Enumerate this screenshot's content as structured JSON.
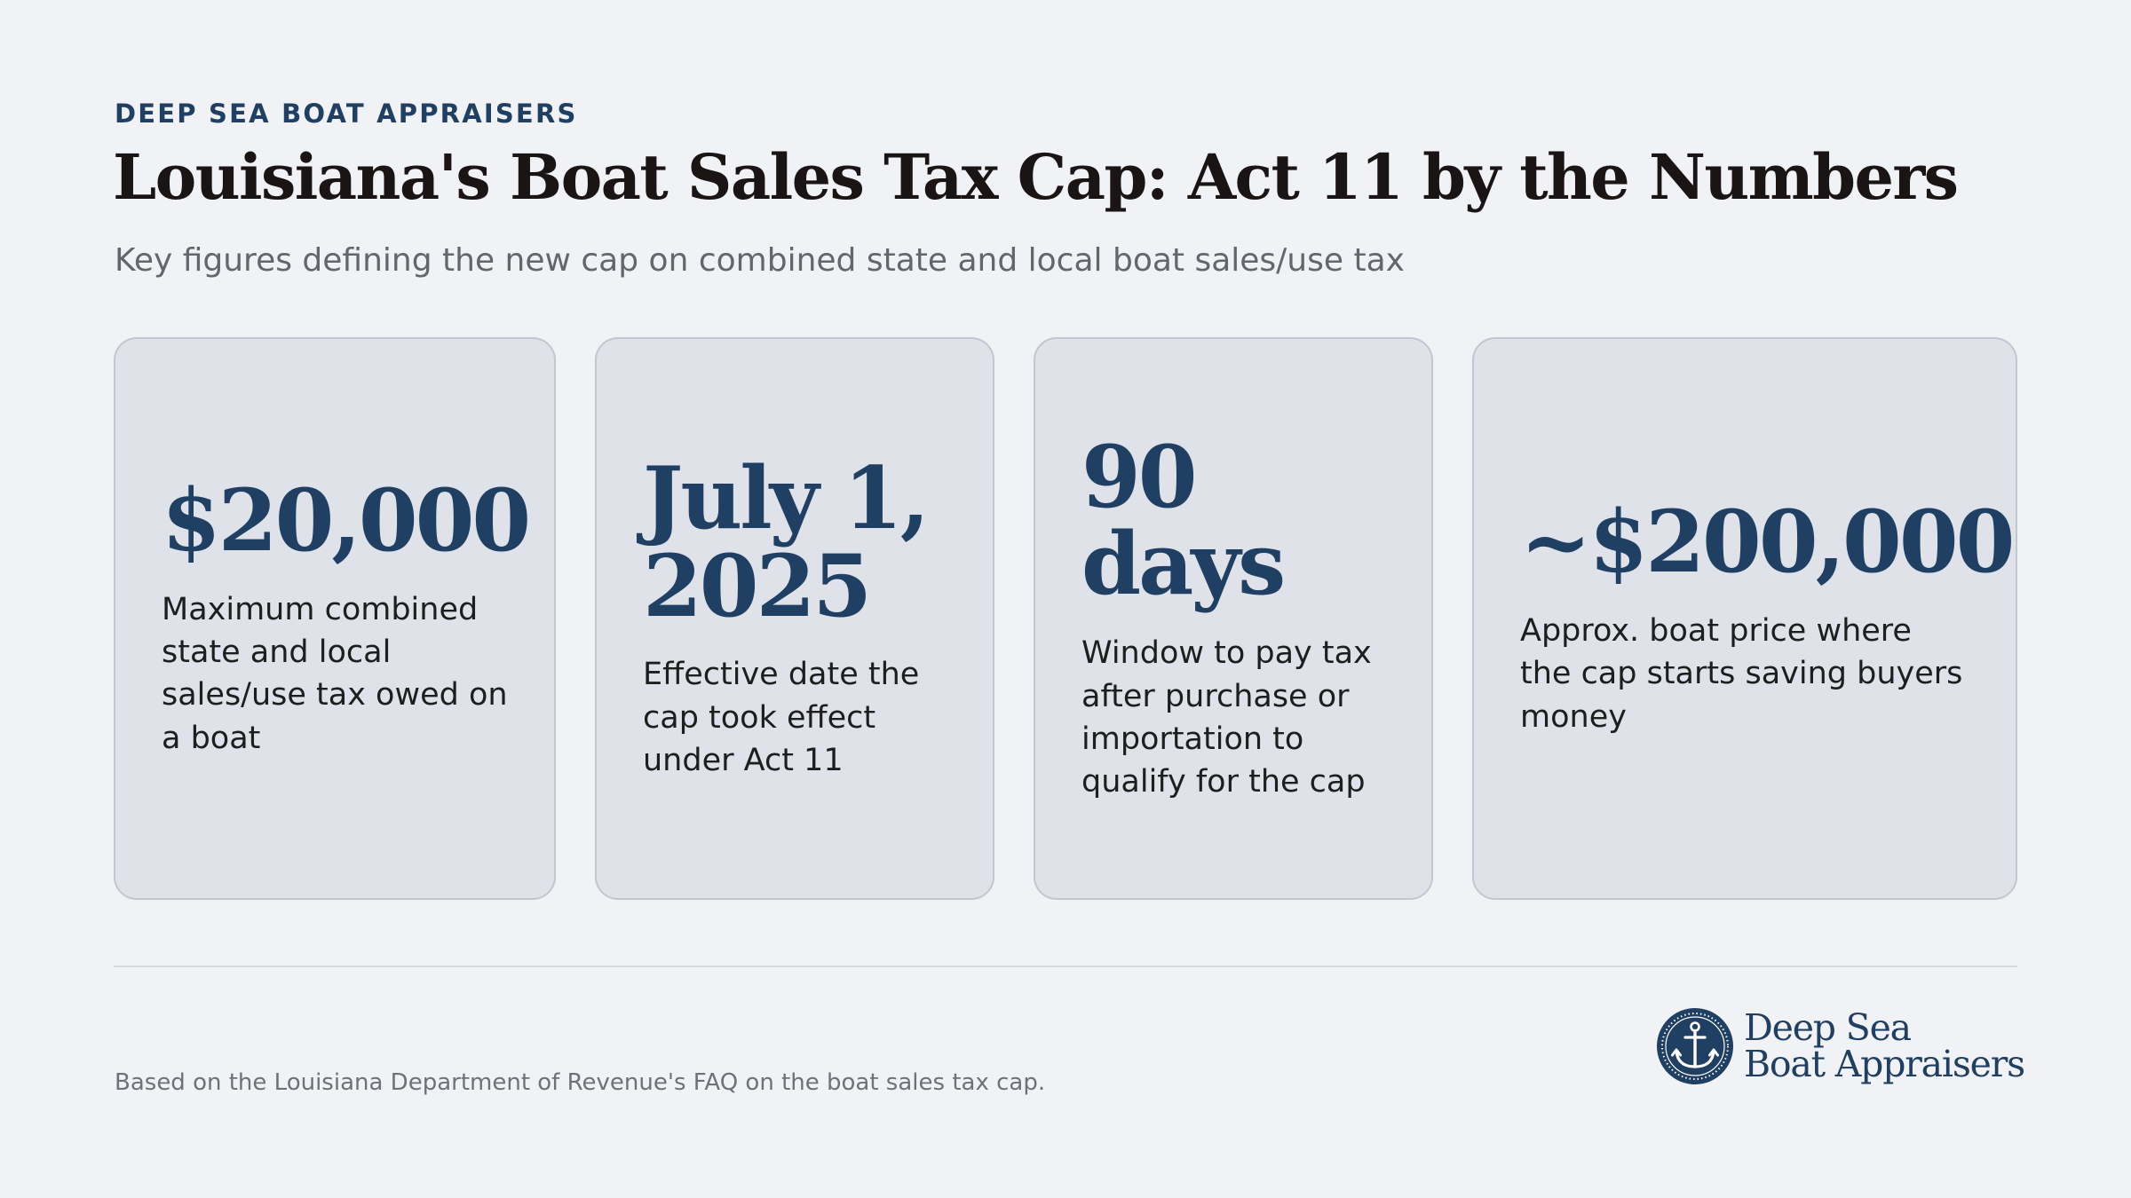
{
  "header": {
    "eyebrow": "DEEP SEA BOAT APPRAISERS",
    "title": "Louisiana's Boat Sales Tax Cap: Act 11 by the Numbers",
    "subtitle": "Key figures defining the new cap on combined state and local boat sales/use tax"
  },
  "stats": [
    {
      "value": "$20,000",
      "label": "Maximum combined state and local sales/use tax owed on a boat"
    },
    {
      "value": "July 1,\n2025",
      "label": "Effective date the cap took effect under Act 11"
    },
    {
      "value": "90\ndays",
      "label": "Window to pay tax after purchase or importation to qualify for the cap"
    },
    {
      "value": "~$200,000",
      "label": "Approx. boat price where the cap starts saving buyers money"
    }
  ],
  "footer": {
    "note": "Based on the Louisiana Department of Revenue's FAQ on the boat sales tax cap.",
    "brand": {
      "line1": "Deep Sea",
      "line2": "Boat Appraisers",
      "icon": "anchor-icon"
    }
  },
  "colors": {
    "background": "#f0f2f5",
    "accent": "#1f3f63",
    "card_background": "#dfe2e9",
    "card_border": "#c2c7cf",
    "title_text": "#1b1414",
    "muted_text": "#62666d"
  }
}
